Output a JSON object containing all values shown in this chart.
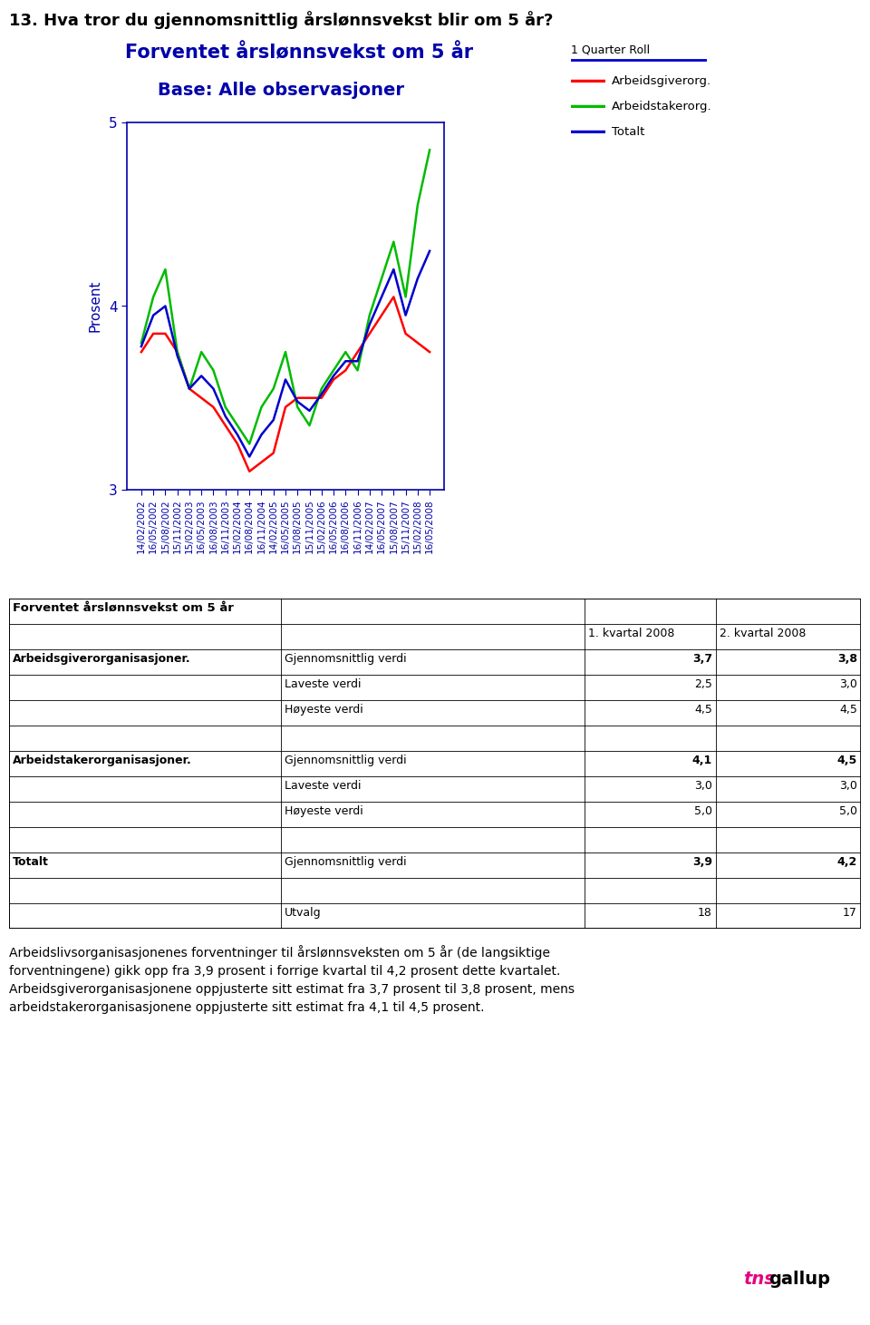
{
  "question_title": "13. Hva tror du gjennomsnittlig årslønnsvekst blir om 5 år?",
  "chart_title": "Forventet årslønnsvekst om 5 år",
  "chart_subtitle": "Base: Alle observasjoner",
  "legend_header": "1 Quarter Roll",
  "legend_items": [
    "Arbeidsgiverorg.",
    "Arbeidstakerorg.",
    "Totalt"
  ],
  "legend_colors": [
    "#ff0000",
    "#00bb00",
    "#0000cc"
  ],
  "ylabel": "Prosent",
  "ylim": [
    3.0,
    5.0
  ],
  "yticks": [
    3,
    4,
    5
  ],
  "x_labels": [
    "14/02/2002",
    "16/05/2002",
    "15/08/2002",
    "15/11/2002",
    "15/02/2003",
    "16/05/2003",
    "16/08/2003",
    "16/11/2003",
    "15/02/2004",
    "16/08/2004",
    "16/11/2004",
    "14/02/2005",
    "16/05/2005",
    "15/08/2005",
    "15/11/2005",
    "15/02/2006",
    "16/05/2006",
    "16/08/2006",
    "16/11/2006",
    "14/02/2007",
    "16/05/2007",
    "15/08/2007",
    "15/11/2007",
    "15/02/2008",
    "16/05/2008"
  ],
  "red_data": [
    3.75,
    3.85,
    3.85,
    3.75,
    3.55,
    3.5,
    3.45,
    3.35,
    3.25,
    3.1,
    3.15,
    3.2,
    3.45,
    3.5,
    3.5,
    3.5,
    3.6,
    3.65,
    3.75,
    3.85,
    3.95,
    4.05,
    3.85,
    3.8,
    3.75
  ],
  "green_data": [
    3.8,
    4.05,
    4.2,
    3.75,
    3.55,
    3.75,
    3.65,
    3.45,
    3.35,
    3.25,
    3.45,
    3.55,
    3.75,
    3.45,
    3.35,
    3.55,
    3.65,
    3.75,
    3.65,
    3.95,
    4.15,
    4.35,
    4.05,
    4.55,
    4.85
  ],
  "blue_data": [
    3.78,
    3.95,
    4.0,
    3.73,
    3.55,
    3.62,
    3.55,
    3.4,
    3.3,
    3.18,
    3.3,
    3.38,
    3.6,
    3.48,
    3.43,
    3.52,
    3.62,
    3.7,
    3.7,
    3.9,
    4.05,
    4.2,
    3.95,
    4.15,
    4.3
  ],
  "col_header_1": "1. kvartal 2008",
  "col_header_2": "2. kvartal 2008",
  "table_title": "Forventet årslønnsvekst om 5 år",
  "table_rows": [
    [
      "",
      "",
      "1. kvartal 2008",
      "2. kvartal 2008"
    ],
    [
      "Arbeidsgiverorganisasjoner.",
      "Gjennomsnittlig verdi",
      "3,7",
      "3,8"
    ],
    [
      "",
      "Laveste verdi",
      "2,5",
      "3,0"
    ],
    [
      "",
      "Høyeste verdi",
      "4,5",
      "4,5"
    ],
    [
      "",
      "",
      "",
      ""
    ],
    [
      "Arbeidstakerorganisasjoner.",
      "Gjennomsnittlig verdi",
      "4,1",
      "4,5"
    ],
    [
      "",
      "Laveste verdi",
      "3,0",
      "3,0"
    ],
    [
      "",
      "Høyeste verdi",
      "5,0",
      "5,0"
    ],
    [
      "",
      "",
      "",
      ""
    ],
    [
      "Totalt",
      "Gjennomsnittlig verdi",
      "3,9",
      "4,2"
    ],
    [
      "",
      "",
      "",
      ""
    ],
    [
      "",
      "Utvalg",
      "18",
      "17"
    ]
  ],
  "footer_text": "Arbeidslivsorganisasjonenes forventninger til årslønnsveksten om 5 år (de langsiktige\nforventningene) gikk opp fra 3,9 prosent i forrige kvartal til 4,2 prosent dette kvartalet.\nArbeidsgiverorganisasjonene oppjusterte sitt estimat fra 3,7 prosent til 3,8 prosent, mens\narbeidstakerorganisasjonene oppjusterte sitt estimat fra 4,1 til 4,5 prosent.",
  "title_color": "#0000aa",
  "axis_color": "#0000aa",
  "bg_color": "#ffffff",
  "bold_names": [
    "Arbeidsgiverorganisasjoner.",
    "Arbeidstakerorganisasjoner.",
    "Totalt"
  ]
}
